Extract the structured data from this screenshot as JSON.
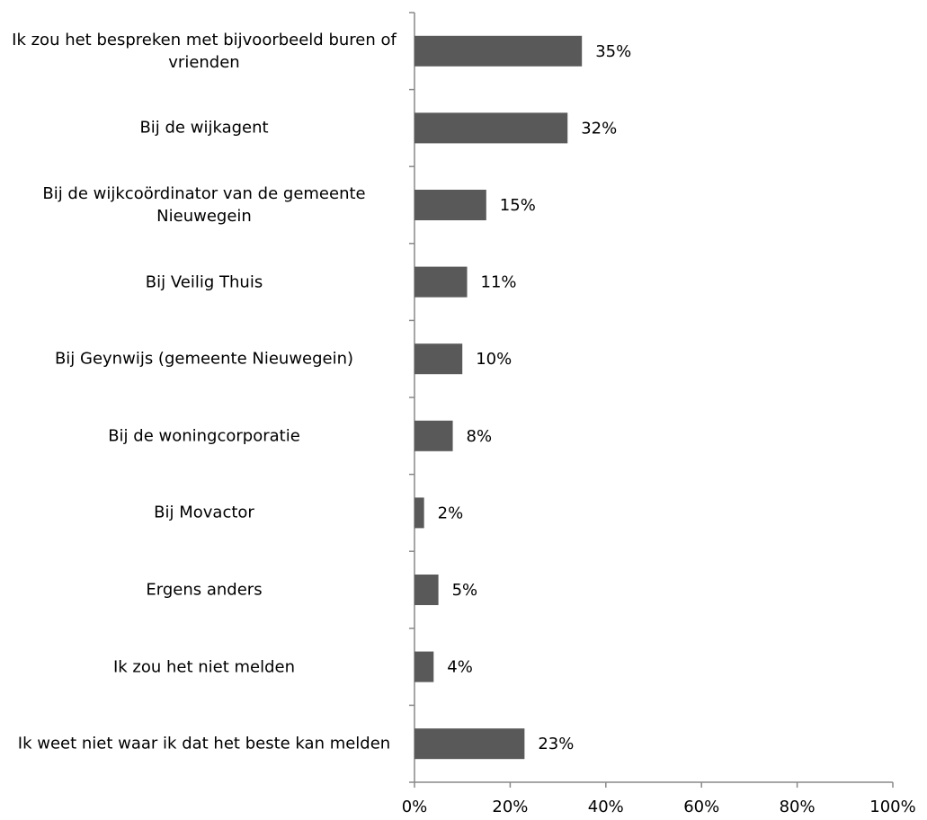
{
  "chart_data": {
    "type": "bar",
    "orientation": "horizontal",
    "categories": [
      "Ik zou het bespreken met bijvoorbeeld buren of vrienden",
      "Bij de wijkagent",
      "Bij de wijkcoördinator van de gemeente Nieuwegein",
      "Bij Veilig Thuis",
      "Bij Geynwijs (gemeente Nieuwegein)",
      "Bij de woningcorporatie",
      "Bij Movactor",
      "Ergens anders",
      "Ik zou het niet melden",
      "Ik weet niet waar ik dat het beste kan melden"
    ],
    "values": [
      35,
      32,
      15,
      11,
      10,
      8,
      2,
      5,
      4,
      23
    ],
    "value_labels": [
      "35%",
      "32%",
      "15%",
      "11%",
      "10%",
      "8%",
      "2%",
      "5%",
      "4%",
      "23%"
    ],
    "color": "#595959",
    "xlim": [
      0,
      100
    ],
    "xticks": [
      {
        "value": 0,
        "label": "0%"
      },
      {
        "value": 20,
        "label": "20%"
      },
      {
        "value": 40,
        "label": "40%"
      },
      {
        "value": 60,
        "label": "60%"
      },
      {
        "value": 80,
        "label": "80%"
      },
      {
        "value": 100,
        "label": "100%"
      }
    ],
    "grid": false
  }
}
